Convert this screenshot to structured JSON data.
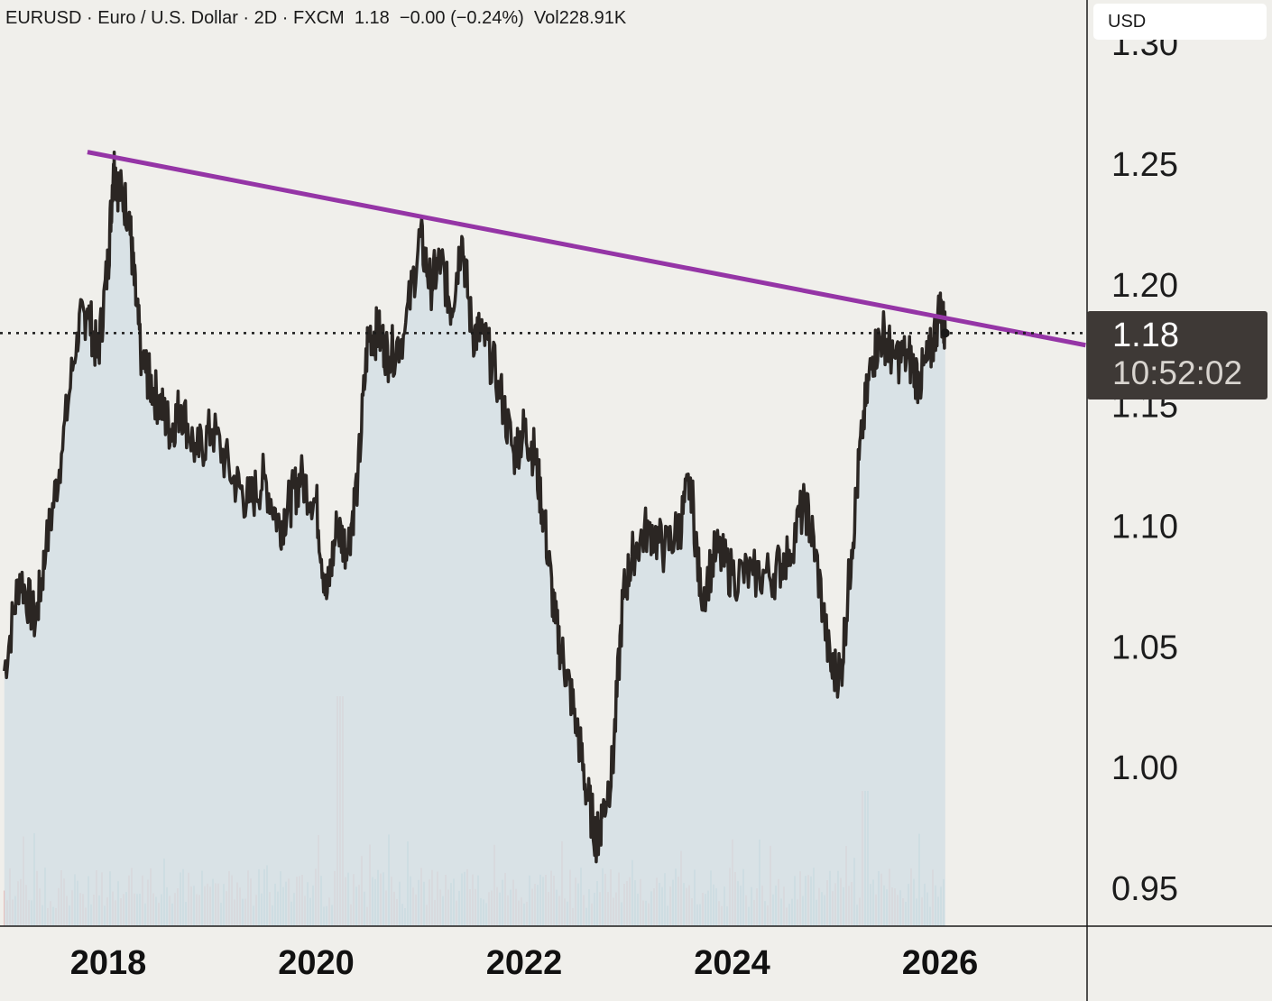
{
  "header": {
    "symbol": "EURUSD",
    "name": "Euro / U.S. Dollar",
    "interval": "2D",
    "exchange": "FXCM",
    "last": "1.18",
    "change": "−0.00",
    "change_pct": "(−0.24%)",
    "volume": "Vol228.91K",
    "separator": "·"
  },
  "currency": "USD",
  "price_label": {
    "value": "1.18",
    "countdown": "10:52:02"
  },
  "colors": {
    "background": "#f0efeb",
    "line": "#2b2623",
    "area": "#d5dfe5",
    "trendline": "#9535a6",
    "up_segment": "#e05a4f",
    "down_segment": "#4a72d4",
    "volume_up": "#6db9b3",
    "volume_down": "#e8908a"
  },
  "chart_data": {
    "type": "area",
    "x_axis": {
      "ticks": [
        "2018",
        "2020",
        "2022",
        "2024",
        "2026"
      ],
      "tick_values": [
        2018,
        2020,
        2022,
        2024,
        2026
      ],
      "range": [
        2017,
        2027.4
      ]
    },
    "y_axis": {
      "ticks": [
        "0.95",
        "1.00",
        "1.05",
        "1.10",
        "1.15",
        "1.20",
        "1.25",
        "1.30"
      ],
      "range": [
        0.935,
        1.315
      ]
    },
    "series": [
      {
        "x": [
          2017.0,
          2017.15,
          2017.3,
          2017.4,
          2017.55,
          2017.7,
          2017.8,
          2017.9,
          2018.0,
          2018.05,
          2018.1,
          2018.2,
          2018.25,
          2018.32,
          2018.4,
          2018.5,
          2018.6,
          2018.7,
          2018.85,
          2019.0,
          2019.2,
          2019.35,
          2019.5,
          2019.65,
          2019.75,
          2019.85,
          2020.0,
          2020.1,
          2020.2,
          2020.3,
          2020.4,
          2020.5,
          2020.6,
          2020.7,
          2020.85,
          2021.0,
          2021.1,
          2021.2,
          2021.3,
          2021.4,
          2021.5,
          2021.6,
          2021.75,
          2021.9,
          2022.0,
          2022.1,
          2022.2,
          2022.3,
          2022.4,
          2022.5,
          2022.6,
          2022.7,
          2022.75,
          2022.85,
          2022.95,
          2023.05,
          2023.2,
          2023.35,
          2023.5,
          2023.6,
          2023.7,
          2023.85,
          2024.0,
          2024.2,
          2024.4,
          2024.55,
          2024.7,
          2024.8,
          2024.95,
          2025.05,
          2025.15,
          2025.25,
          2025.35,
          2025.45,
          2025.55,
          2025.7,
          2025.8,
          2025.9,
          2026.0,
          2026.05
        ],
        "y": [
          1.04,
          1.08,
          1.06,
          1.09,
          1.13,
          1.18,
          1.19,
          1.17,
          1.21,
          1.25,
          1.24,
          1.23,
          1.2,
          1.17,
          1.16,
          1.15,
          1.14,
          1.15,
          1.13,
          1.14,
          1.12,
          1.11,
          1.12,
          1.1,
          1.11,
          1.12,
          1.11,
          1.07,
          1.1,
          1.09,
          1.12,
          1.18,
          1.18,
          1.17,
          1.18,
          1.22,
          1.2,
          1.21,
          1.19,
          1.22,
          1.18,
          1.18,
          1.16,
          1.13,
          1.14,
          1.13,
          1.1,
          1.06,
          1.04,
          1.02,
          0.99,
          0.97,
          0.98,
          1.0,
          1.07,
          1.09,
          1.1,
          1.09,
          1.1,
          1.12,
          1.07,
          1.09,
          1.08,
          1.08,
          1.08,
          1.09,
          1.11,
          1.09,
          1.04,
          1.04,
          1.09,
          1.14,
          1.17,
          1.18,
          1.17,
          1.17,
          1.16,
          1.17,
          1.19,
          1.18
        ]
      }
    ],
    "last_price": 1.18,
    "trendline": {
      "x": [
        2017.8,
        2027.4
      ],
      "y": [
        1.255,
        1.175
      ]
    },
    "grid": false,
    "volume": {
      "max": 228910,
      "shown": true
    }
  }
}
